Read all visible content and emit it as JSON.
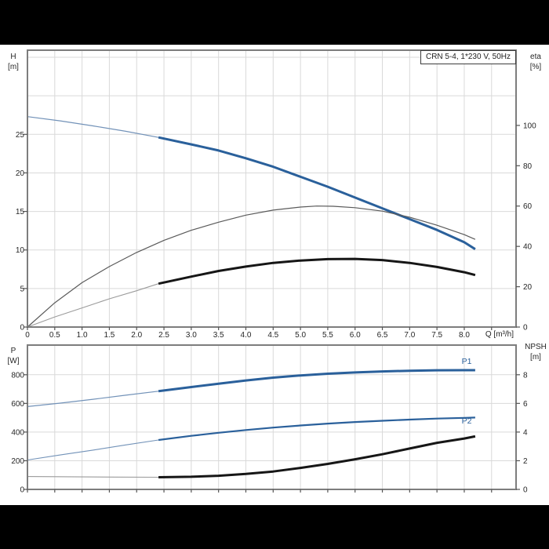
{
  "title_box": {
    "label": "CRN 5-4, 1*230 V, 50Hz"
  },
  "labels": {
    "p1": "P1",
    "p2": "P2"
  },
  "colors": {
    "curve_blue": "#2a609b",
    "thin_blue": "#7292b8",
    "black": "#161616",
    "thin_gray": "#9b9b9b",
    "eta_gray": "#5a5a5a",
    "grid": "#d9d9d9",
    "border": "#7d7d7d",
    "tick": "#555555",
    "text": "#262626",
    "band": "#000000",
    "panel": "#ffffff"
  },
  "chart_data": [
    {
      "type": "line",
      "id": "hq",
      "title": "CRN 5-4, 1*230 V, 50Hz",
      "xlabel": "Q [m³/h]",
      "ylabel_left_line1": "H",
      "ylabel_left_line2": "[m]",
      "ylabel_right_line1": "eta",
      "ylabel_right_line2": "[%]",
      "xlim": [
        0,
        8.95
      ],
      "ylim_left": [
        0,
        36
      ],
      "ylim_right": [
        0,
        140
      ],
      "grid": true,
      "x_tick_values": [
        0,
        0.5,
        1,
        1.5,
        2,
        2.5,
        3,
        3.5,
        4,
        4.5,
        5,
        5.5,
        6,
        6.5,
        7,
        7.5,
        8
      ],
      "x_tick_labels": [
        "0",
        "0.5",
        "1.0",
        "1.5",
        "2.0",
        "2.5",
        "3.0",
        "3.5",
        "4.0",
        "4.5",
        "5.0",
        "5.5",
        "6.0",
        "6.5",
        "7.0",
        "7.5",
        "8.0"
      ],
      "x_grid_values": [
        0.5,
        1,
        1.5,
        2,
        2.5,
        3,
        3.5,
        4,
        4.5,
        5,
        5.5,
        6,
        6.5,
        7,
        7.5,
        8,
        8.5
      ],
      "y_ticks_left": [
        0,
        5,
        10,
        15,
        20,
        25
      ],
      "y_grid_left": [
        5,
        10,
        15,
        20,
        25,
        30,
        35
      ],
      "y_ticks_right": [
        0,
        20,
        40,
        60,
        80,
        100
      ],
      "series": [
        {
          "name": "hq-curve-lead-in",
          "axis": "left",
          "style": "thin_blue",
          "width": 1.2,
          "points": [
            [
              0,
              27.3
            ],
            [
              0.6,
              26.75
            ],
            [
              1.2,
              26.1
            ],
            [
              1.8,
              25.4
            ],
            [
              2.4,
              24.6
            ]
          ]
        },
        {
          "name": "hq-curve",
          "axis": "left",
          "style": "curve_blue",
          "width": 3,
          "points": [
            [
              2.4,
              24.6
            ],
            [
              3,
              23.7
            ],
            [
              3.5,
              22.9
            ],
            [
              4,
              21.9
            ],
            [
              4.5,
              20.8
            ],
            [
              5,
              19.5
            ],
            [
              5.5,
              18.2
            ],
            [
              6,
              16.8
            ],
            [
              6.5,
              15.4
            ],
            [
              7,
              14.0
            ],
            [
              7.5,
              12.6
            ],
            [
              8,
              11.0
            ],
            [
              8.2,
              10.1
            ]
          ]
        },
        {
          "name": "eta-pump-curve",
          "axis": "right",
          "style": "eta_gray",
          "width": 1.2,
          "points": [
            [
              0,
              0
            ],
            [
              0.5,
              12
            ],
            [
              1,
              22
            ],
            [
              1.5,
              30
            ],
            [
              2,
              37
            ],
            [
              2.5,
              43
            ],
            [
              3,
              48
            ],
            [
              3.5,
              52
            ],
            [
              4,
              55.5
            ],
            [
              4.5,
              58
            ],
            [
              5,
              59.5
            ],
            [
              5.3,
              60
            ],
            [
              5.6,
              59.9
            ],
            [
              6,
              59.2
            ],
            [
              6.5,
              57.5
            ],
            [
              7,
              54.5
            ],
            [
              7.5,
              50.5
            ],
            [
              8,
              45.8
            ],
            [
              8.2,
              43.5
            ]
          ]
        },
        {
          "name": "eta-pump-motor-lead-in",
          "axis": "right",
          "style": "thin_gray",
          "width": 1.1,
          "points": [
            [
              0,
              0
            ],
            [
              0.5,
              5
            ],
            [
              1,
              9.5
            ],
            [
              1.5,
              14
            ],
            [
              2,
              18
            ],
            [
              2.4,
              21.5
            ]
          ]
        },
        {
          "name": "eta-pump-motor-curve",
          "axis": "right",
          "style": "black",
          "width": 3,
          "points": [
            [
              2.4,
              21.5
            ],
            [
              3,
              25
            ],
            [
              3.5,
              27.8
            ],
            [
              4,
              30
            ],
            [
              4.5,
              31.8
            ],
            [
              5,
              33
            ],
            [
              5.5,
              33.7
            ],
            [
              6,
              33.8
            ],
            [
              6.5,
              33.2
            ],
            [
              7,
              31.8
            ],
            [
              7.5,
              29.8
            ],
            [
              8,
              27.2
            ],
            [
              8.2,
              25.8
            ]
          ]
        }
      ]
    },
    {
      "type": "line",
      "id": "power",
      "xlabel": "",
      "ylabel_left_line1": "P",
      "ylabel_left_line2": "[W]",
      "ylabel_right_line1": "NPSH",
      "ylabel_right_line2": "[m]",
      "xlim": [
        0,
        8.95
      ],
      "ylim_left": [
        0,
        1006
      ],
      "ylim_right": [
        0,
        10.06
      ],
      "grid": true,
      "x_tick_values": [
        0,
        0.5,
        1,
        1.5,
        2,
        2.5,
        3,
        3.5,
        4,
        4.5,
        5,
        5.5,
        6,
        6.5,
        7,
        7.5,
        8
      ],
      "x_tick_labels": null,
      "x_grid_values": [
        0.5,
        1,
        1.5,
        2,
        2.5,
        3,
        3.5,
        4,
        4.5,
        5,
        5.5,
        6,
        6.5,
        7,
        7.5,
        8,
        8.5
      ],
      "y_ticks_left": [
        0,
        200,
        400,
        600,
        800
      ],
      "y_grid_left": [
        200,
        400,
        600,
        800
      ],
      "y_ticks_right": [
        0,
        2,
        4,
        6,
        8
      ],
      "series": [
        {
          "name": "p1-curve-lead-in",
          "axis": "left",
          "style": "thin_blue",
          "width": 1.2,
          "points": [
            [
              0,
              578
            ],
            [
              0.6,
              602
            ],
            [
              1.2,
              629
            ],
            [
              1.8,
              657
            ],
            [
              2.4,
              685
            ]
          ]
        },
        {
          "name": "p1-curve",
          "axis": "left",
          "style": "curve_blue",
          "width": 3,
          "points": [
            [
              2.4,
              685
            ],
            [
              3,
              714
            ],
            [
              3.5,
              737
            ],
            [
              4,
              760
            ],
            [
              4.5,
              780
            ],
            [
              5,
              795
            ],
            [
              5.5,
              807
            ],
            [
              6,
              816
            ],
            [
              6.5,
              823
            ],
            [
              7,
              828
            ],
            [
              7.5,
              831
            ],
            [
              8,
              832
            ],
            [
              8.2,
              832
            ]
          ]
        },
        {
          "name": "p2-curve-lead-in",
          "axis": "left",
          "style": "thin_blue",
          "width": 1.1,
          "points": [
            [
              0,
              205
            ],
            [
              0.6,
              240
            ],
            [
              1.2,
              274
            ],
            [
              1.8,
              310
            ],
            [
              2.4,
              345
            ]
          ]
        },
        {
          "name": "p2-curve",
          "axis": "left",
          "style": "curve_blue",
          "width": 2.2,
          "points": [
            [
              2.4,
              345
            ],
            [
              3,
              374
            ],
            [
              3.5,
              395
            ],
            [
              4,
              414
            ],
            [
              4.5,
              431
            ],
            [
              5,
              446
            ],
            [
              5.5,
              459
            ],
            [
              6,
              470
            ],
            [
              6.5,
              479
            ],
            [
              7,
              487
            ],
            [
              7.5,
              494
            ],
            [
              8,
              499
            ],
            [
              8.2,
              501
            ]
          ]
        },
        {
          "name": "npsh-curve-lead-in",
          "axis": "right",
          "style": "thin_gray",
          "width": 1.1,
          "points": [
            [
              0,
              0.9
            ],
            [
              0.8,
              0.88
            ],
            [
              1.6,
              0.86
            ],
            [
              2.4,
              0.85
            ]
          ]
        },
        {
          "name": "npsh-curve",
          "axis": "right",
          "style": "black",
          "width": 3,
          "points": [
            [
              2.4,
              0.85
            ],
            [
              3,
              0.88
            ],
            [
              3.5,
              0.95
            ],
            [
              4,
              1.08
            ],
            [
              4.5,
              1.25
            ],
            [
              5,
              1.5
            ],
            [
              5.5,
              1.78
            ],
            [
              6,
              2.1
            ],
            [
              6.5,
              2.45
            ],
            [
              7,
              2.85
            ],
            [
              7.5,
              3.25
            ],
            [
              8,
              3.55
            ],
            [
              8.2,
              3.7
            ]
          ]
        }
      ]
    }
  ]
}
